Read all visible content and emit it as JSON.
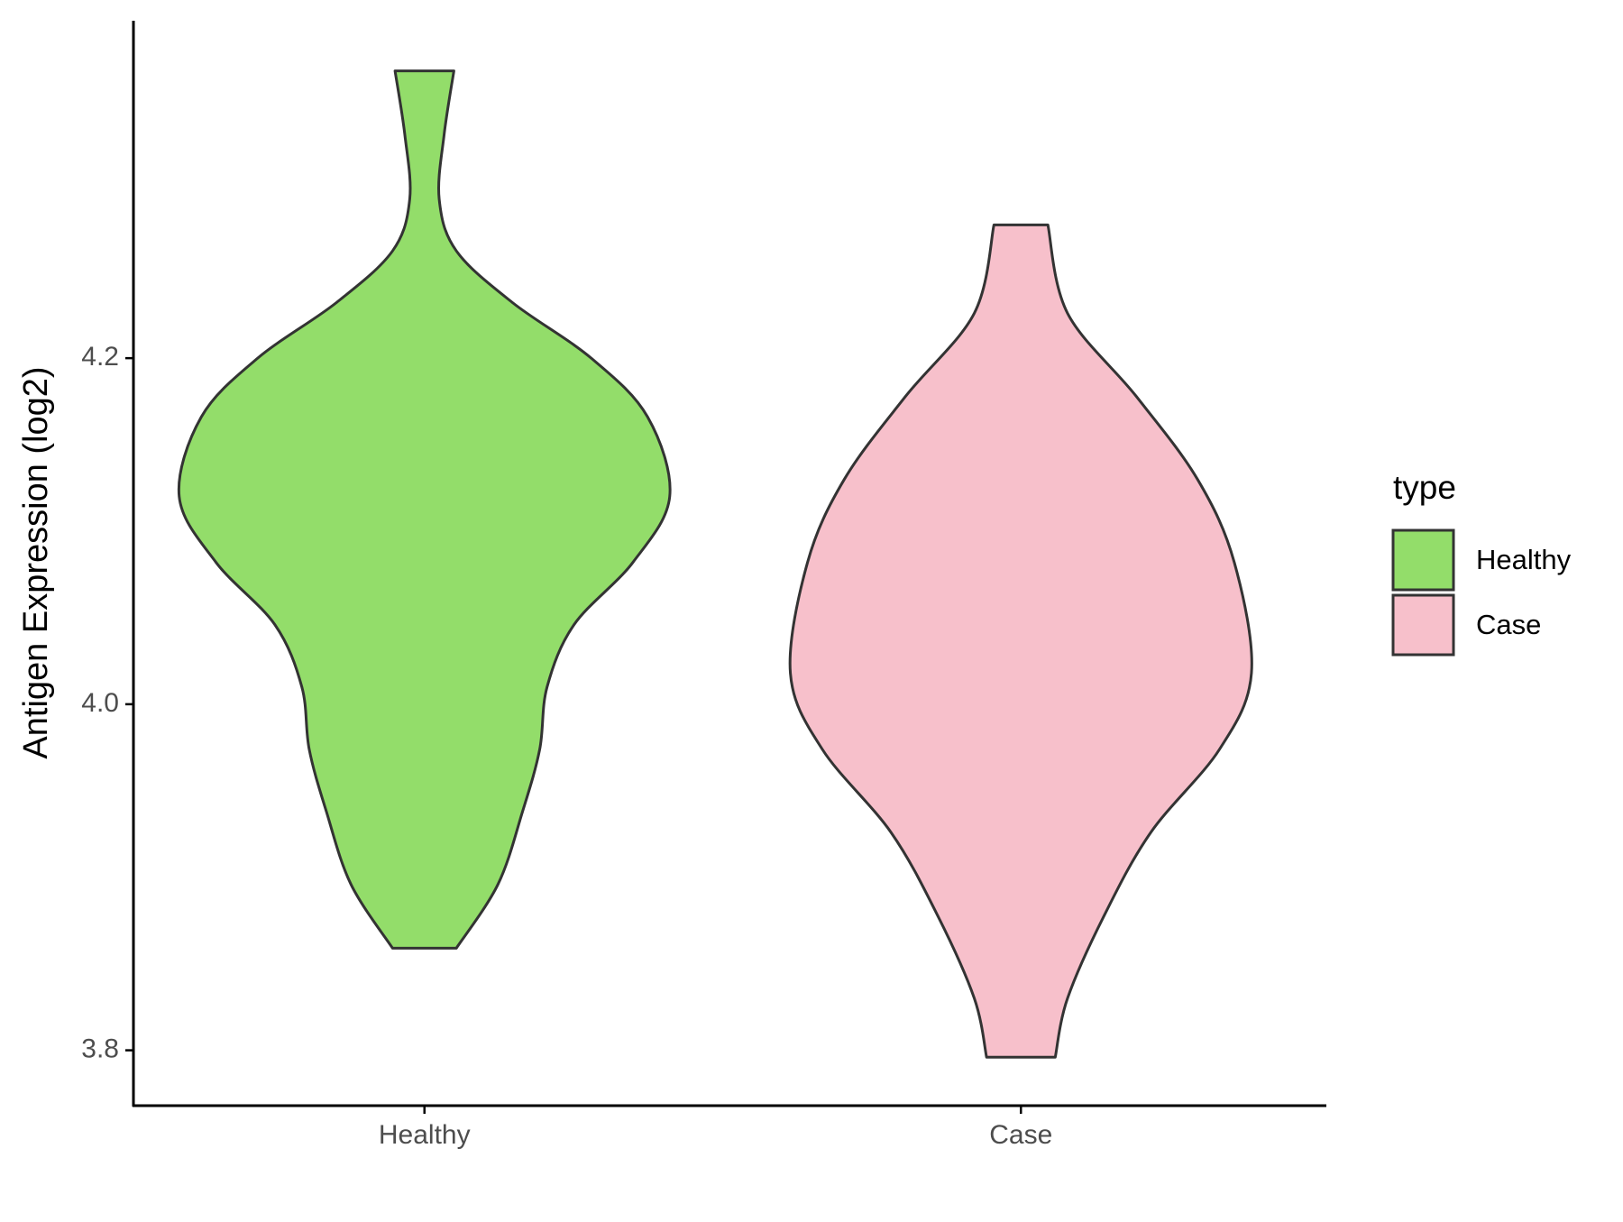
{
  "chart_data": {
    "type": "violin",
    "y_label": "Antigen Expression (log2)",
    "categories": [
      "Healthy",
      "Case"
    ],
    "legend_title": "type",
    "legend_position": "right",
    "series": [
      {
        "name": "Healthy",
        "color": "#93dd6a",
        "values": [
          4.366,
          4.329,
          4.292,
          4.262,
          4.232,
          4.2,
          4.166,
          4.12,
          4.082,
          4.046,
          4.01,
          3.974,
          3.938,
          3.896,
          3.859
        ],
        "density": [
          0.12,
          0.08,
          0.06,
          0.13,
          0.36,
          0.68,
          0.91,
          1.0,
          0.85,
          0.61,
          0.5,
          0.47,
          0.4,
          0.3,
          0.13
        ]
      },
      {
        "name": "Case",
        "color": "#f7c0cb",
        "values": [
          4.277,
          4.226,
          4.178,
          4.13,
          4.082,
          4.018,
          3.974,
          3.926,
          3.878,
          3.83,
          3.796
        ],
        "density": [
          0.11,
          0.19,
          0.47,
          0.72,
          0.87,
          0.94,
          0.81,
          0.53,
          0.34,
          0.19,
          0.14
        ]
      }
    ],
    "ylim": [
      3.768,
      4.395
    ],
    "yticks": [
      3.8,
      {
        "value": 4,
        "label": "4.0"
      },
      4.2
    ]
  }
}
